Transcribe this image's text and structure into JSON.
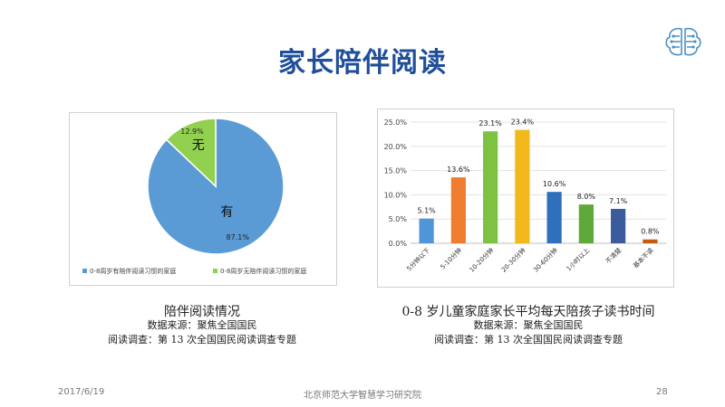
{
  "slide": {
    "title": "家长陪伴阅读",
    "logo_icon": "brain-circuit-icon",
    "footer_date": "2017/6/19",
    "footer_org": "北京师范大学智慧学习研究院",
    "page_number": "28"
  },
  "pie_caption": {
    "main": "陪伴阅读情况",
    "source": "数据来源：聚焦全国国民",
    "survey": "阅读调查：第 13 次全国国民阅读调查专题"
  },
  "bar_caption": {
    "main": "0-8 岁儿童家庭家长平均每天陪孩子读书时间",
    "source": "数据来源：聚焦全国国民",
    "survey": "阅读调查：第 13 次全国国民阅读调查专题"
  },
  "chart_data": [
    {
      "type": "pie",
      "slices": [
        {
          "label": "有",
          "value": 87.1,
          "value_label": "87.1%",
          "legend": "0-8周岁有陪伴阅读习惯的家庭",
          "color": "#5b9bd5"
        },
        {
          "label": "无",
          "value": 12.9,
          "value_label": "12.9%",
          "legend": "0-8周岁无陪伴阅读习惯的家庭",
          "color": "#92d050"
        }
      ],
      "legend_position": "bottom"
    },
    {
      "type": "bar",
      "categories": [
        "5分钟以下",
        "5-10分钟",
        "10-20分钟",
        "20-30分钟",
        "30-60分钟",
        "1小时以上",
        "不清楚",
        "基本不读"
      ],
      "values": [
        5.1,
        13.6,
        23.1,
        23.4,
        10.6,
        8.0,
        7.1,
        0.8
      ],
      "value_labels": [
        "5.1%",
        "13.6%",
        "23.1%",
        "23.4%",
        "10.6%",
        "8.0%",
        "7.1%",
        "0.8%"
      ],
      "colors": [
        "#4f95d8",
        "#f07c30",
        "#7dc241",
        "#f2b81c",
        "#2f6fbb",
        "#5fa83a",
        "#3b5c9c",
        "#c55a11"
      ],
      "yticks": [
        "0.0%",
        "5.0%",
        "10.0%",
        "15.0%",
        "20.0%",
        "25.0%"
      ],
      "ylim": [
        0,
        25
      ],
      "grid": true
    }
  ]
}
